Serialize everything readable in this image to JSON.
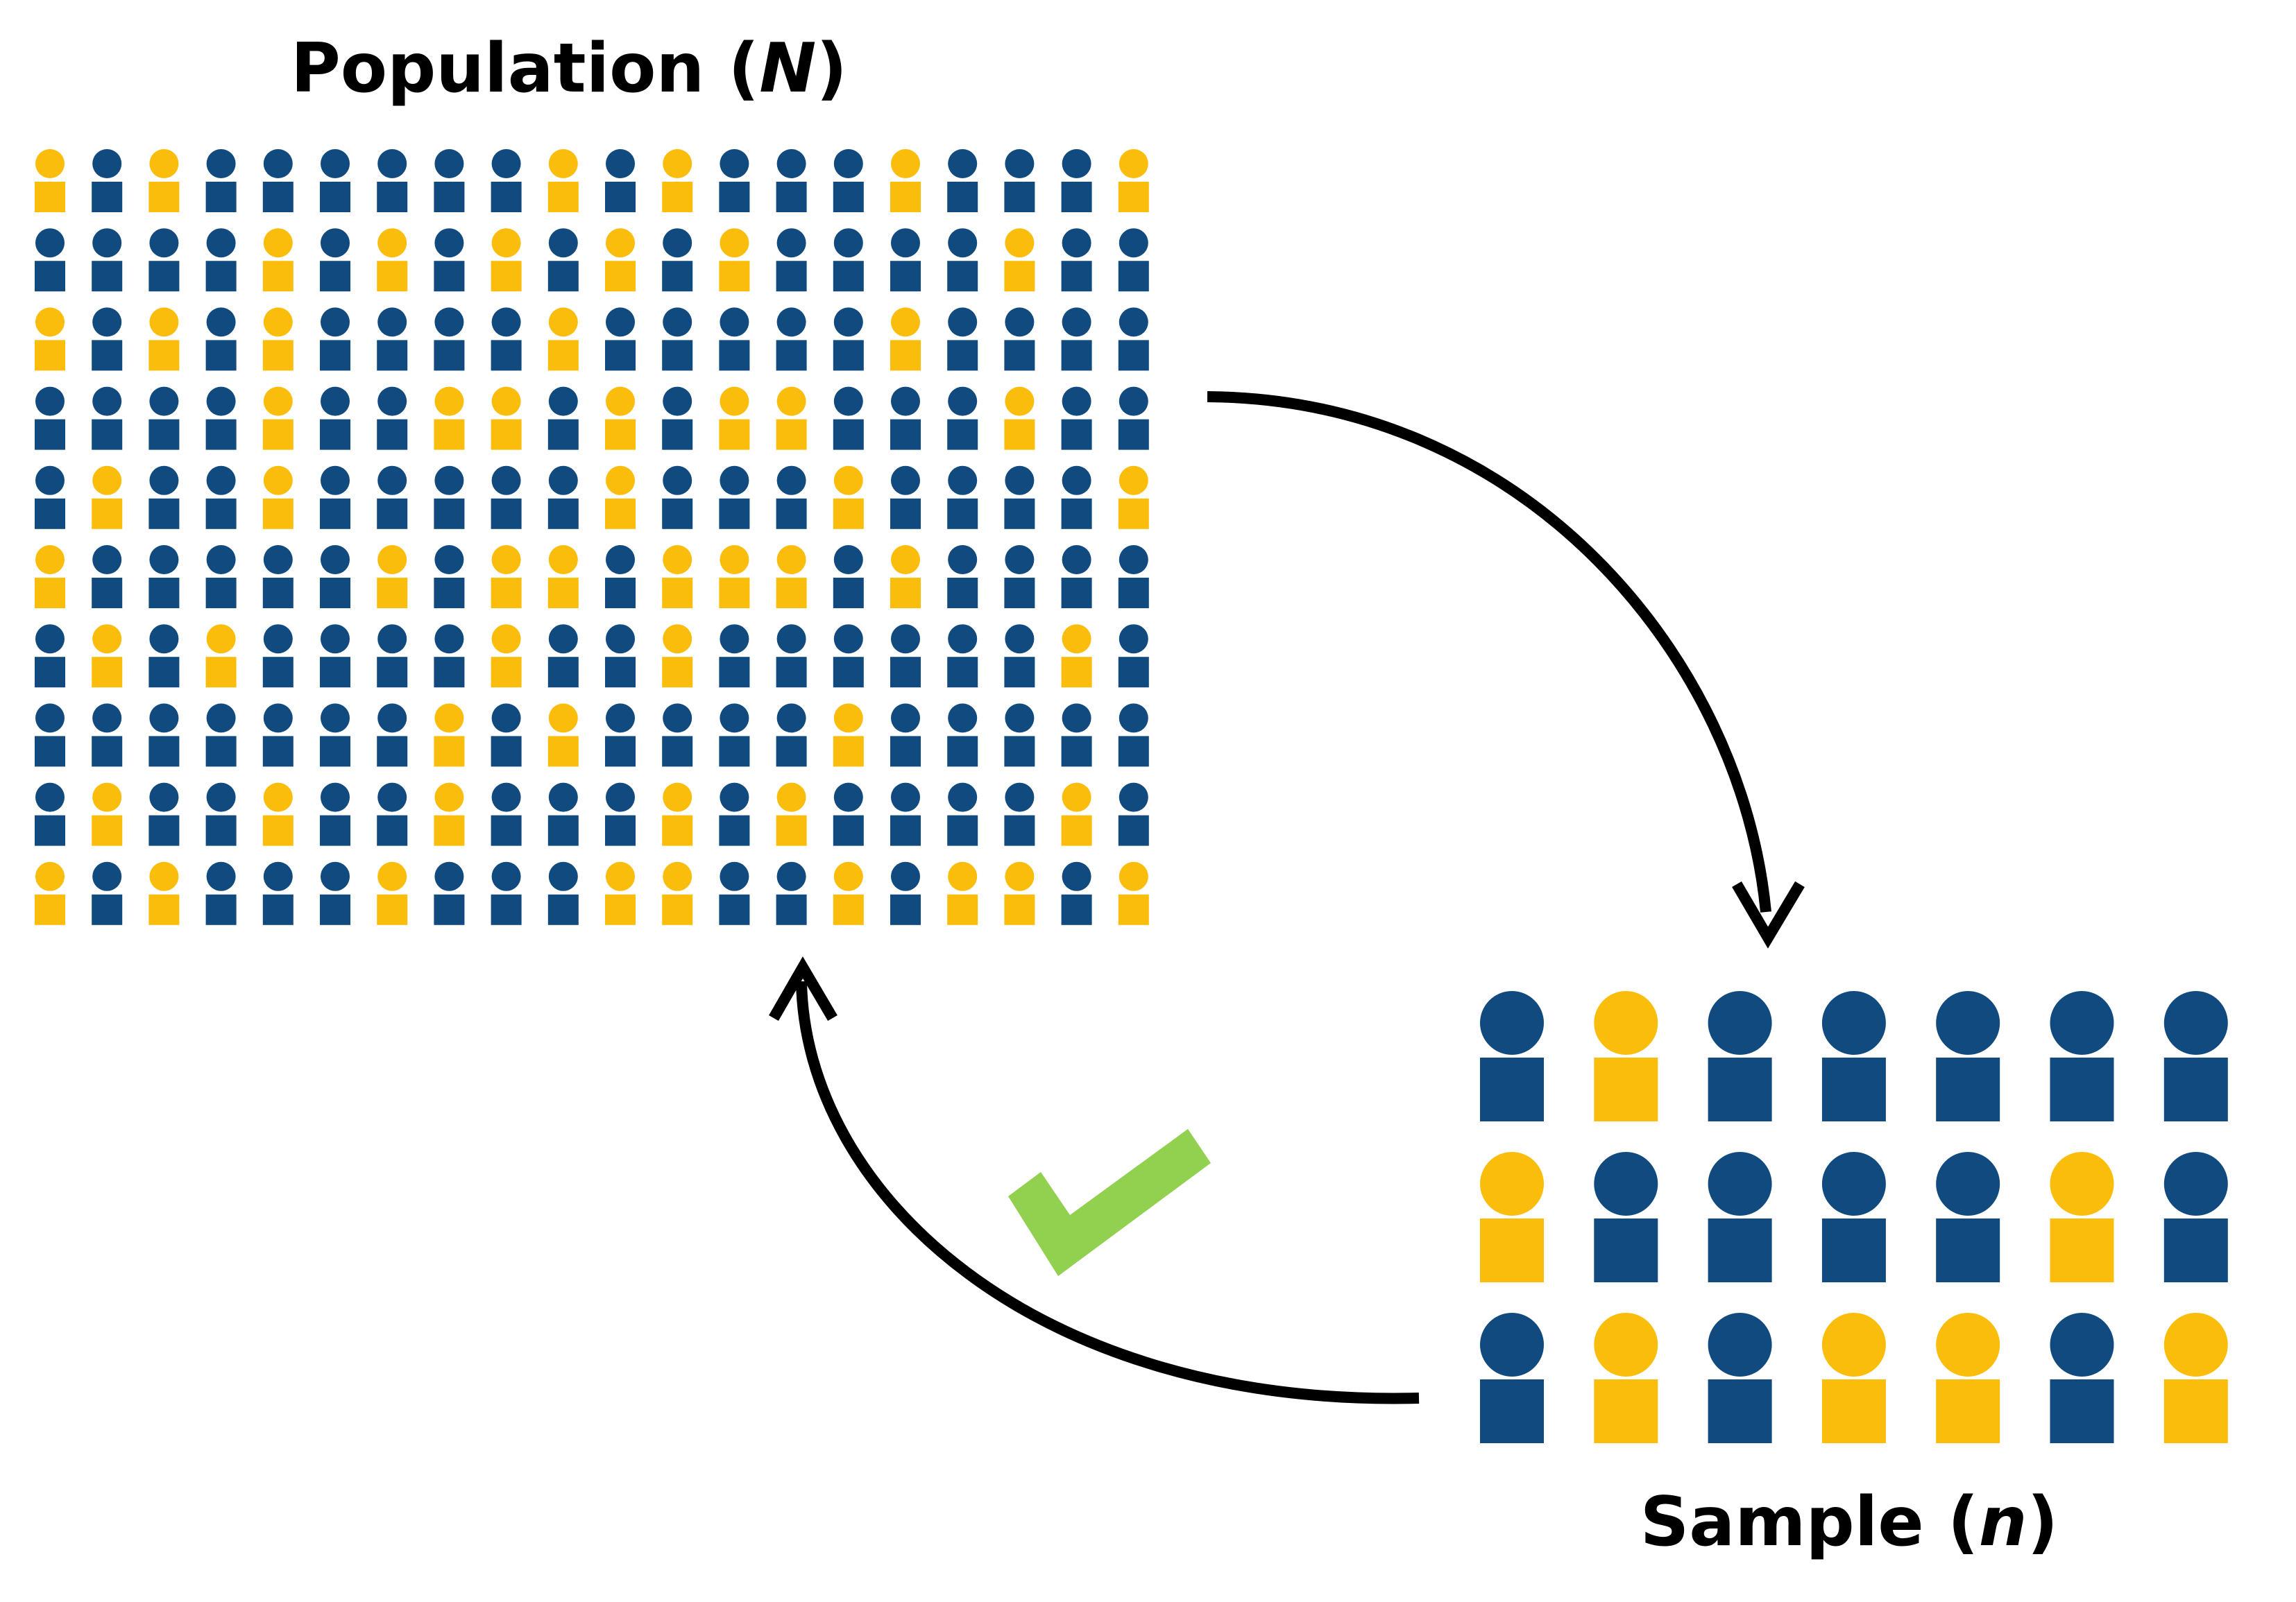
{
  "population": {
    "title": "Population",
    "symbol": "N",
    "rows": [
      "YBYBBBBBBYBYBBBYBBBY",
      "BBBBYBYBYBYBYBBBBYBB",
      "YBYBYBBBBYBBBBBYBBBB",
      "BBBBYBBYYBYBYYBBBYBB",
      "BYBBYBBBBBYBBBYBBBBY",
      "YBBBBBYBYYBYYYBYBBBB",
      "BYBYBBBBYBBYBBBBBBYB",
      "BBBBBBBYBYBBBBYBBBBB",
      "BYBBYBBYBBBYBYBBBBYB",
      "YBYBBBYBBBYYBBYBYYBY"
    ]
  },
  "sample": {
    "title": "Sample",
    "symbol": "n",
    "rows": [
      "BYBBBBB",
      "YBBBBYB",
      "BYBYYBY"
    ]
  },
  "colors": {
    "blue": "#114a7f",
    "yellow": "#fbbd0b",
    "arrow": "#000000",
    "check": "#92d050"
  },
  "icons": {
    "check": "check-mark-icon",
    "person": "person-icon"
  }
}
